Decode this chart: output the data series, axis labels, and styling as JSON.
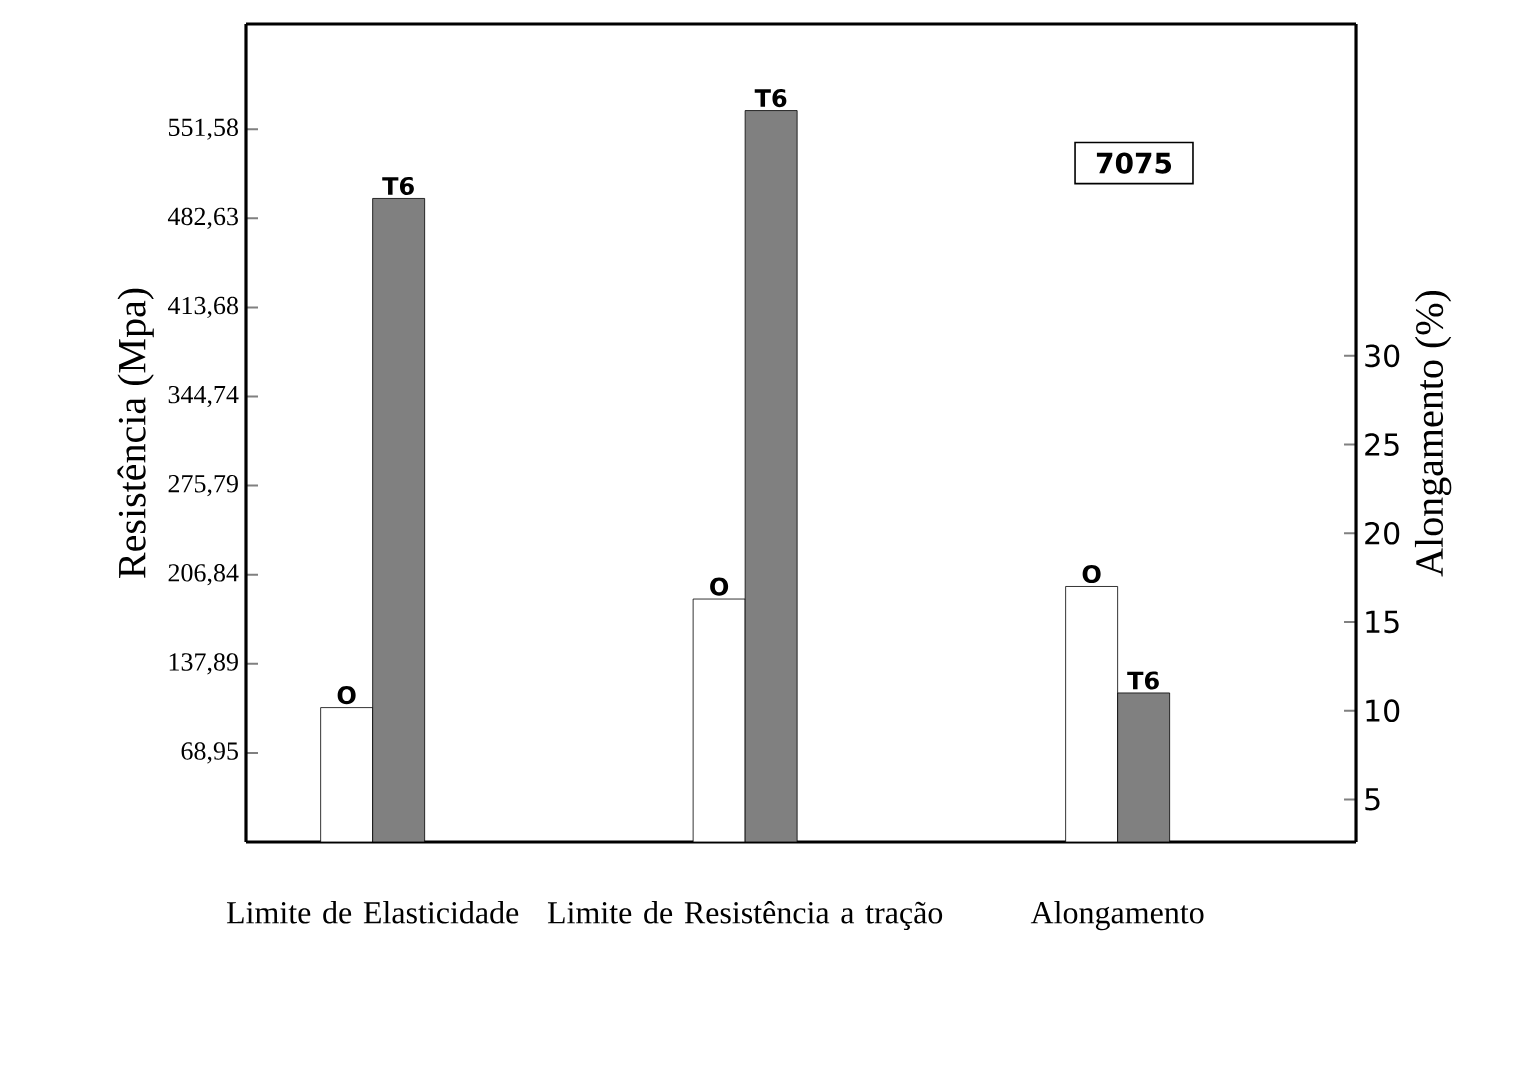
{
  "chart_data": {
    "type": "bar",
    "categories": [
      "Limite de Elasticidade",
      "Limite de Resistência a tração",
      "Alongamento"
    ],
    "ylabel": "Resistência (Mpa)",
    "y2label": "Alongamento (%)",
    "ylim": [
      0,
      633
    ],
    "yticks": [
      {
        "value": 68.95,
        "label": "68,95"
      },
      {
        "value": 137.89,
        "label": "137,89"
      },
      {
        "value": 206.84,
        "label": "206,84"
      },
      {
        "value": 275.79,
        "label": "275,79"
      },
      {
        "value": 344.74,
        "label": "344,74"
      },
      {
        "value": 413.68,
        "label": "413,68"
      },
      {
        "value": 482.63,
        "label": "482,63"
      },
      {
        "value": 551.58,
        "label": "551,58"
      }
    ],
    "y2lim": [
      2.6,
      48.7
    ],
    "y2ticks": [
      5,
      10,
      15,
      20,
      25,
      30
    ],
    "series": [
      {
        "name": "O",
        "color": "#ffffff",
        "values": [
          104,
          188,
          null
        ]
      },
      {
        "name": "T6",
        "color": "#808080",
        "values": [
          498,
          566,
          null
        ]
      },
      {
        "name": "O",
        "color": "#ffffff",
        "axis": "y2",
        "values": [
          null,
          null,
          17
        ]
      },
      {
        "name": "T6",
        "color": "#808080",
        "axis": "y2",
        "values": [
          null,
          null,
          11
        ]
      }
    ],
    "annotations": [
      "7075"
    ]
  }
}
